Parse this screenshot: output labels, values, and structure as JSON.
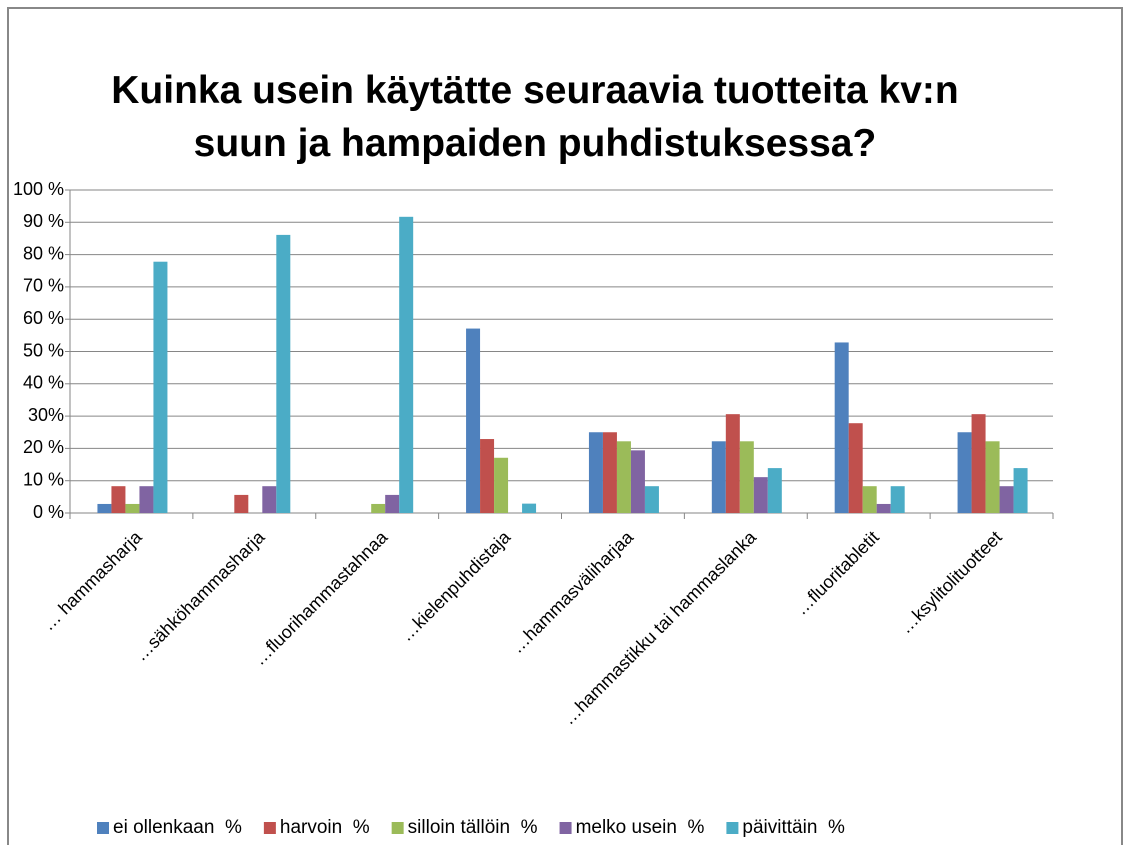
{
  "chart_data": {
    "type": "bar",
    "title": "Kuinka usein käytätte seuraavia tuotteita kv:n suun ja hampaiden puhdistuksessa?",
    "categories": [
      "… hammasharja",
      "…sähköhammasharja",
      "…fluorihammastahnaa",
      "…kielenpuhdistaja",
      "…hammasväliharjaa",
      "…hammastikku tai hammaslanka",
      "…fluoritabletit",
      "…ksylitolituotteet"
    ],
    "series": [
      {
        "name": "ei ollenkaan  %",
        "color": "#4f81bd",
        "values": [
          2.8,
          0,
          0,
          57.1,
          25,
          22.2,
          52.8,
          25
        ]
      },
      {
        "name": "harvoin  %",
        "color": "#c0504d",
        "values": [
          8.3,
          5.6,
          0,
          22.9,
          25,
          30.6,
          27.8,
          30.6
        ]
      },
      {
        "name": "silloin tällöin  %",
        "color": "#9bbb59",
        "values": [
          2.8,
          0,
          2.8,
          17.1,
          22.2,
          22.2,
          8.3,
          22.2
        ]
      },
      {
        "name": "melko usein  %",
        "color": "#8064a2",
        "values": [
          8.3,
          8.3,
          5.6,
          0,
          19.4,
          11.1,
          2.8,
          8.3
        ]
      },
      {
        "name": "päivittäin  %",
        "color": "#4bacc6",
        "values": [
          77.8,
          86.1,
          91.7,
          2.9,
          8.3,
          13.9,
          8.3,
          13.9
        ]
      }
    ],
    "ylim": [
      0,
      100
    ],
    "yticks": [
      {
        "value": 0,
        "label": "0 %"
      },
      {
        "value": 10,
        "label": "10 %"
      },
      {
        "value": 20,
        "label": "20 %"
      },
      {
        "value": 30,
        "label": "30%"
      },
      {
        "value": 40,
        "label": "40 %"
      },
      {
        "value": 50,
        "label": "50 %"
      },
      {
        "value": 60,
        "label": "60 %"
      },
      {
        "value": 70,
        "label": "70 %"
      },
      {
        "value": 80,
        "label": "80 %"
      },
      {
        "value": 90,
        "label": "90 %"
      },
      {
        "value": 100,
        "label": "100 %"
      }
    ],
    "grid": true,
    "legend": "bottom"
  }
}
